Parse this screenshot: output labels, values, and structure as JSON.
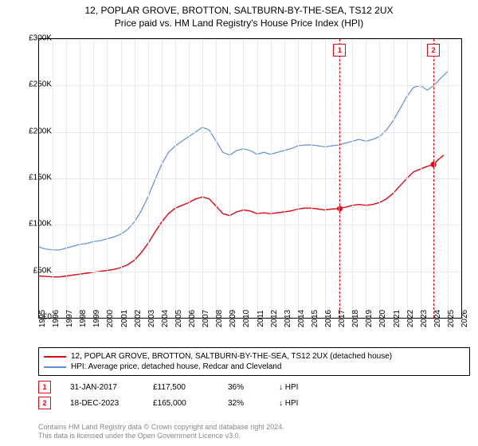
{
  "title_line1": "12, POPLAR GROVE, BROTTON, SALTBURN-BY-THE-SEA, TS12 2UX",
  "title_line2": "Price paid vs. HM Land Registry's House Price Index (HPI)",
  "chart": {
    "type": "line",
    "background_color": "#ffffff",
    "grid_color": "#e9e9e9",
    "border_color": "#000000",
    "xlim": [
      1995,
      2026
    ],
    "ylim": [
      0,
      300000
    ],
    "ytick_step": 50000,
    "ytick_labels": [
      "£0",
      "£50K",
      "£100K",
      "£150K",
      "£200K",
      "£250K",
      "£300K"
    ],
    "xtick_step": 1,
    "xtick_labels": [
      "1995",
      "1996",
      "1997",
      "1998",
      "1999",
      "2000",
      "2001",
      "2002",
      "2003",
      "2004",
      "2005",
      "2006",
      "2007",
      "2008",
      "2009",
      "2010",
      "2011",
      "2012",
      "2013",
      "2014",
      "2015",
      "2016",
      "2017",
      "2018",
      "2019",
      "2020",
      "2021",
      "2022",
      "2023",
      "2024",
      "2025",
      "2026"
    ],
    "series": [
      {
        "name": "price_paid",
        "label": "12, POPLAR GROVE, BROTTON, SALTBURN-BY-THE-SEA, TS12 2UX (detached house)",
        "color": "#e30613",
        "line_width": 1.4,
        "points": [
          [
            1995.0,
            45000
          ],
          [
            1995.5,
            44500
          ],
          [
            1996.0,
            44000
          ],
          [
            1996.5,
            44000
          ],
          [
            1997.0,
            45000
          ],
          [
            1997.5,
            46000
          ],
          [
            1998.0,
            47000
          ],
          [
            1998.5,
            48000
          ],
          [
            1999.0,
            49000
          ],
          [
            1999.5,
            50000
          ],
          [
            2000.0,
            51000
          ],
          [
            2000.5,
            52000
          ],
          [
            2001.0,
            54000
          ],
          [
            2001.5,
            57000
          ],
          [
            2002.0,
            62000
          ],
          [
            2002.5,
            70000
          ],
          [
            2003.0,
            80000
          ],
          [
            2003.5,
            92000
          ],
          [
            2004.0,
            103000
          ],
          [
            2004.5,
            112000
          ],
          [
            2005.0,
            118000
          ],
          [
            2005.5,
            121000
          ],
          [
            2006.0,
            124000
          ],
          [
            2006.5,
            128000
          ],
          [
            2007.0,
            130000
          ],
          [
            2007.5,
            128000
          ],
          [
            2008.0,
            120000
          ],
          [
            2008.5,
            112000
          ],
          [
            2009.0,
            110000
          ],
          [
            2009.5,
            114000
          ],
          [
            2010.0,
            116000
          ],
          [
            2010.5,
            115000
          ],
          [
            2011.0,
            112000
          ],
          [
            2011.5,
            113000
          ],
          [
            2012.0,
            112000
          ],
          [
            2012.5,
            113000
          ],
          [
            2013.0,
            114000
          ],
          [
            2013.5,
            115000
          ],
          [
            2014.0,
            117000
          ],
          [
            2014.5,
            118000
          ],
          [
            2015.0,
            118000
          ],
          [
            2015.5,
            117000
          ],
          [
            2016.0,
            116000
          ],
          [
            2016.5,
            117000
          ],
          [
            2017.0,
            117500
          ],
          [
            2017.5,
            119000
          ],
          [
            2018.0,
            121000
          ],
          [
            2018.5,
            122000
          ],
          [
            2019.0,
            121000
          ],
          [
            2019.5,
            122000
          ],
          [
            2020.0,
            124000
          ],
          [
            2020.5,
            128000
          ],
          [
            2021.0,
            134000
          ],
          [
            2021.5,
            142000
          ],
          [
            2022.0,
            150000
          ],
          [
            2022.5,
            157000
          ],
          [
            2023.0,
            160000
          ],
          [
            2023.5,
            163000
          ],
          [
            2023.96,
            165000
          ],
          [
            2024.3,
            170000
          ],
          [
            2024.7,
            175000
          ]
        ]
      },
      {
        "name": "hpi",
        "label": "HPI: Average price, detached house, Redcar and Cleveland",
        "color": "#5b8fd6",
        "line_width": 1.2,
        "points": [
          [
            1995.0,
            76000
          ],
          [
            1995.5,
            74000
          ],
          [
            1996.0,
            73000
          ],
          [
            1996.5,
            73000
          ],
          [
            1997.0,
            75000
          ],
          [
            1997.5,
            77000
          ],
          [
            1998.0,
            79000
          ],
          [
            1998.5,
            80000
          ],
          [
            1999.0,
            82000
          ],
          [
            1999.5,
            83000
          ],
          [
            2000.0,
            85000
          ],
          [
            2000.5,
            87000
          ],
          [
            2001.0,
            90000
          ],
          [
            2001.5,
            95000
          ],
          [
            2002.0,
            103000
          ],
          [
            2002.5,
            115000
          ],
          [
            2003.0,
            130000
          ],
          [
            2003.5,
            148000
          ],
          [
            2004.0,
            165000
          ],
          [
            2004.5,
            178000
          ],
          [
            2005.0,
            185000
          ],
          [
            2005.5,
            190000
          ],
          [
            2006.0,
            195000
          ],
          [
            2006.5,
            200000
          ],
          [
            2007.0,
            205000
          ],
          [
            2007.5,
            202000
          ],
          [
            2008.0,
            190000
          ],
          [
            2008.5,
            178000
          ],
          [
            2009.0,
            175000
          ],
          [
            2009.5,
            180000
          ],
          [
            2010.0,
            182000
          ],
          [
            2010.5,
            180000
          ],
          [
            2011.0,
            176000
          ],
          [
            2011.5,
            178000
          ],
          [
            2012.0,
            176000
          ],
          [
            2012.5,
            178000
          ],
          [
            2013.0,
            180000
          ],
          [
            2013.5,
            182000
          ],
          [
            2014.0,
            185000
          ],
          [
            2014.5,
            186000
          ],
          [
            2015.0,
            186000
          ],
          [
            2015.5,
            185000
          ],
          [
            2016.0,
            184000
          ],
          [
            2016.5,
            185000
          ],
          [
            2017.0,
            186000
          ],
          [
            2017.5,
            188000
          ],
          [
            2018.0,
            190000
          ],
          [
            2018.5,
            192000
          ],
          [
            2019.0,
            190000
          ],
          [
            2019.5,
            192000
          ],
          [
            2020.0,
            195000
          ],
          [
            2020.5,
            202000
          ],
          [
            2021.0,
            212000
          ],
          [
            2021.5,
            225000
          ],
          [
            2022.0,
            238000
          ],
          [
            2022.5,
            248000
          ],
          [
            2023.0,
            250000
          ],
          [
            2023.5,
            245000
          ],
          [
            2024.0,
            250000
          ],
          [
            2024.5,
            258000
          ],
          [
            2025.0,
            265000
          ]
        ]
      }
    ],
    "sale_markers": [
      {
        "n": "1",
        "x": 2017.08,
        "y": 117500,
        "color": "#e30613"
      },
      {
        "n": "2",
        "x": 2023.96,
        "y": 165000,
        "color": "#e30613"
      }
    ]
  },
  "sales": [
    {
      "n": "1",
      "date": "31-JAN-2017",
      "price": "£117,500",
      "pct": "36%",
      "arrow": "↓",
      "cmp": "HPI",
      "color": "#e30613"
    },
    {
      "n": "2",
      "date": "18-DEC-2023",
      "price": "£165,000",
      "pct": "32%",
      "arrow": "↓",
      "cmp": "HPI",
      "color": "#e30613"
    }
  ],
  "footer_line1": "Contains HM Land Registry data © Crown copyright and database right 2024.",
  "footer_line2": "This data is licensed under the Open Government Licence v3.0."
}
